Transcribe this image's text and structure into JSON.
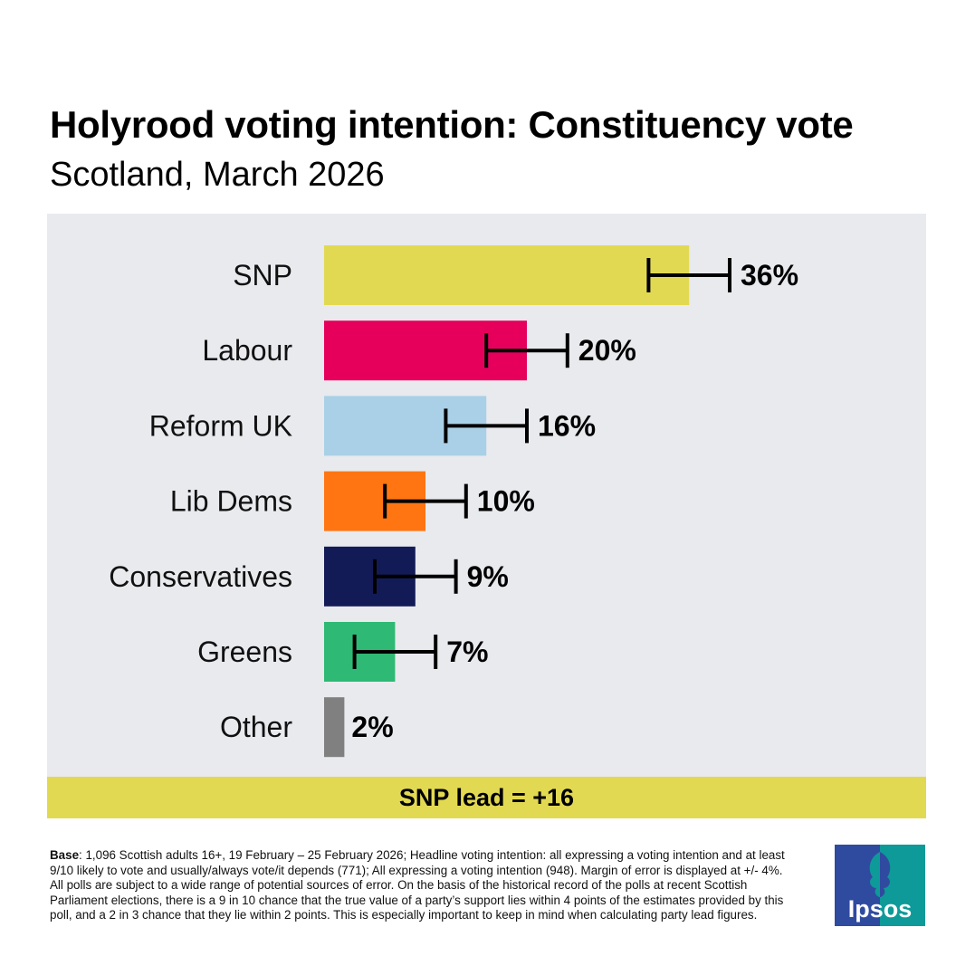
{
  "header": {
    "title": "Holyrood voting intention: Constituency vote",
    "subtitle": "Scotland, March 2026"
  },
  "chart_data": {
    "type": "bar",
    "orientation": "horizontal",
    "categories": [
      "SNP",
      "Labour",
      "Reform UK",
      "Lib Dems",
      "Conservatives",
      "Greens",
      "Other"
    ],
    "values": [
      36,
      20,
      16,
      10,
      9,
      7,
      2
    ],
    "value_labels": [
      "36%",
      "20%",
      "16%",
      "10%",
      "9%",
      "7%",
      "2%"
    ],
    "error_bars": [
      {
        "low": 32,
        "high": 40
      },
      {
        "low": 16,
        "high": 24
      },
      {
        "low": 12,
        "high": 20
      },
      {
        "low": 6,
        "high": 14
      },
      {
        "low": 5,
        "high": 13
      },
      {
        "low": 3,
        "high": 11
      },
      null
    ],
    "colors": [
      "#e2d952",
      "#e6005c",
      "#a9d0e6",
      "#ff7512",
      "#131b57",
      "#2eb974",
      "#808080"
    ],
    "xlim": [
      0,
      40
    ],
    "grid": false,
    "legend": "none"
  },
  "lead": {
    "text": "SNP lead = +16"
  },
  "footnote": {
    "base_label": "Base",
    "text": ": 1,096 Scottish adults 16+, 19 February – 25 February 2026; Headline voting intention: all expressing a voting intention and at least 9/10 likely to vote and usually/always vote/it depends (771); All expressing a voting intention (948). Margin of error is displayed at +/- 4%. All polls are subject to a wide range of potential sources of error. On the basis of the historical record of the polls at recent Scottish Parliament elections, there is a 9 in 10 chance that the true value of a party’s support lies within 4 points of the estimates provided by this poll, and a 2 in 3 chance that they lie within 2 points. This is especially important to keep in mind when calculating party lead figures."
  },
  "logo": {
    "text": "Ipsos",
    "colors": [
      "#2f4ba0",
      "#0e9a98"
    ]
  }
}
